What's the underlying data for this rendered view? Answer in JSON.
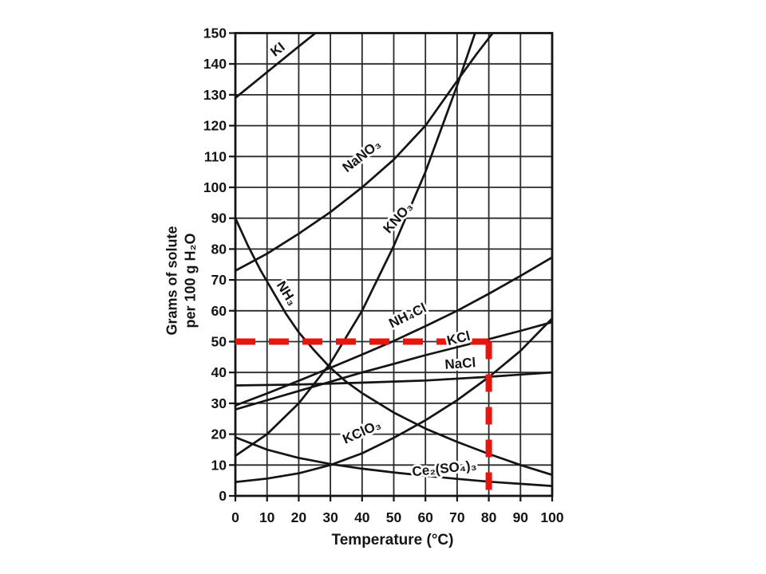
{
  "page": {
    "background": "#ffffff"
  },
  "chart_data": {
    "type": "line",
    "title": "",
    "xlabel": "Temperature (°C)",
    "ylabel_lines": [
      "Grams of solute",
      "per 100 g H₂O"
    ],
    "xlim": [
      0,
      100
    ],
    "ylim": [
      0,
      150
    ],
    "xticks": [
      0,
      10,
      20,
      30,
      40,
      50,
      60,
      70,
      80,
      90,
      100
    ],
    "yticks": [
      0,
      10,
      20,
      30,
      40,
      50,
      60,
      70,
      80,
      90,
      100,
      110,
      120,
      130,
      140,
      150
    ],
    "grid": true,
    "line_color": "#141414",
    "series": [
      {
        "name": "KI",
        "label": "KI",
        "points": [
          [
            0,
            129
          ],
          [
            6,
            134
          ],
          [
            12,
            139
          ],
          [
            18,
            144
          ],
          [
            22,
            147.3
          ],
          [
            26,
            150.6
          ],
          [
            28,
            152
          ]
        ],
        "label_pos": [
          13.5,
          144.5
        ],
        "label_angle": -38
      },
      {
        "name": "NaNO3",
        "label": "NaNO₃",
        "points": [
          [
            0,
            73
          ],
          [
            10,
            78.5
          ],
          [
            20,
            85
          ],
          [
            30,
            92
          ],
          [
            40,
            100
          ],
          [
            50,
            109
          ],
          [
            60,
            120
          ],
          [
            70,
            134.5
          ],
          [
            76,
            143
          ],
          [
            82,
            151
          ]
        ],
        "label_pos": [
          40,
          110
        ],
        "label_angle": -38
      },
      {
        "name": "KNO3",
        "label": "KNO₃",
        "points": [
          [
            0,
            13
          ],
          [
            10,
            20
          ],
          [
            20,
            30
          ],
          [
            30,
            43
          ],
          [
            40,
            60
          ],
          [
            50,
            81
          ],
          [
            60,
            105
          ],
          [
            70,
            133
          ],
          [
            76,
            151
          ]
        ],
        "label_pos": [
          51.5,
          90
        ],
        "label_angle": -48
      },
      {
        "name": "NH3",
        "label": "NH₃",
        "points": [
          [
            0,
            90
          ],
          [
            4,
            81
          ],
          [
            8,
            73
          ],
          [
            12,
            66
          ],
          [
            16,
            59
          ],
          [
            20,
            53
          ],
          [
            25,
            47
          ],
          [
            30,
            41.5
          ],
          [
            35,
            37
          ],
          [
            40,
            33.3
          ],
          [
            50,
            27
          ],
          [
            60,
            21.8
          ],
          [
            70,
            17.5
          ],
          [
            80,
            13.6
          ],
          [
            90,
            10
          ],
          [
            100,
            6.8
          ]
        ],
        "label_pos": [
          16,
          65.5
        ],
        "label_angle": 58
      },
      {
        "name": "NH4Cl",
        "label": "NH₄Cl",
        "points": [
          [
            0,
            29.3
          ],
          [
            10,
            33.2
          ],
          [
            20,
            37.3
          ],
          [
            30,
            41.5
          ],
          [
            40,
            45.8
          ],
          [
            50,
            50.2
          ],
          [
            60,
            55
          ],
          [
            70,
            60
          ],
          [
            80,
            65.5
          ],
          [
            90,
            71.3
          ],
          [
            100,
            77.3
          ]
        ],
        "label_pos": [
          54.5,
          58.2
        ],
        "label_angle": -26
      },
      {
        "name": "KCl",
        "label": "KCl",
        "points": [
          [
            0,
            28
          ],
          [
            10,
            31
          ],
          [
            20,
            34
          ],
          [
            30,
            37
          ],
          [
            40,
            40
          ],
          [
            50,
            42.8
          ],
          [
            60,
            45.6
          ],
          [
            70,
            48.2
          ],
          [
            80,
            50.8
          ],
          [
            90,
            53.5
          ],
          [
            100,
            56.3
          ]
        ],
        "label_pos": [
          70.5,
          50.8
        ],
        "label_angle": -14
      },
      {
        "name": "NaCl",
        "label": "NaCl",
        "points": [
          [
            0,
            35.8
          ],
          [
            20,
            36.1
          ],
          [
            40,
            36.7
          ],
          [
            60,
            37.4
          ],
          [
            80,
            38.6
          ],
          [
            100,
            40
          ]
        ],
        "label_pos": [
          71,
          42.6
        ],
        "label_angle": -4
      },
      {
        "name": "KClO3",
        "label": "KClO₃",
        "points": [
          [
            0,
            4.5
          ],
          [
            10,
            5.6
          ],
          [
            20,
            7.3
          ],
          [
            30,
            10
          ],
          [
            40,
            13.8
          ],
          [
            50,
            18.8
          ],
          [
            60,
            24.5
          ],
          [
            70,
            31
          ],
          [
            80,
            38.5
          ],
          [
            90,
            47
          ],
          [
            100,
            57.5
          ]
        ],
        "label_pos": [
          40,
          20.5
        ],
        "label_angle": -24
      },
      {
        "name": "Ce2(SO4)3",
        "label": "Ce₂(SO₄)₃",
        "points": [
          [
            0,
            19
          ],
          [
            10,
            15
          ],
          [
            20,
            12.3
          ],
          [
            30,
            10.3
          ],
          [
            40,
            8.8
          ],
          [
            50,
            7.6
          ],
          [
            60,
            6.5
          ],
          [
            70,
            5.5
          ],
          [
            80,
            4.6
          ],
          [
            90,
            3.9
          ],
          [
            100,
            3.2
          ]
        ],
        "label_pos": [
          66,
          8.6
        ],
        "label_angle": -6
      }
    ],
    "annotation": {
      "name": "red-dashed-crosshair",
      "color": "#e8140e",
      "horizontal": {
        "y": 50,
        "x_from": 0,
        "x_to": 80
      },
      "vertical": {
        "x": 80,
        "y_from": 50,
        "y_to": 0
      }
    }
  }
}
